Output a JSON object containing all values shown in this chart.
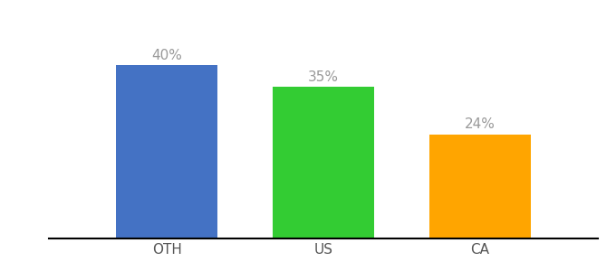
{
  "categories": [
    "OTH",
    "US",
    "CA"
  ],
  "values": [
    40,
    35,
    24
  ],
  "bar_colors": [
    "#4472C4",
    "#33CC33",
    "#FFA500"
  ],
  "label_color": "#999999",
  "value_labels": [
    "40%",
    "35%",
    "24%"
  ],
  "background_color": "#ffffff",
  "label_fontsize": 11,
  "tick_fontsize": 11,
  "ylim": [
    0,
    50
  ],
  "bar_width": 0.65
}
